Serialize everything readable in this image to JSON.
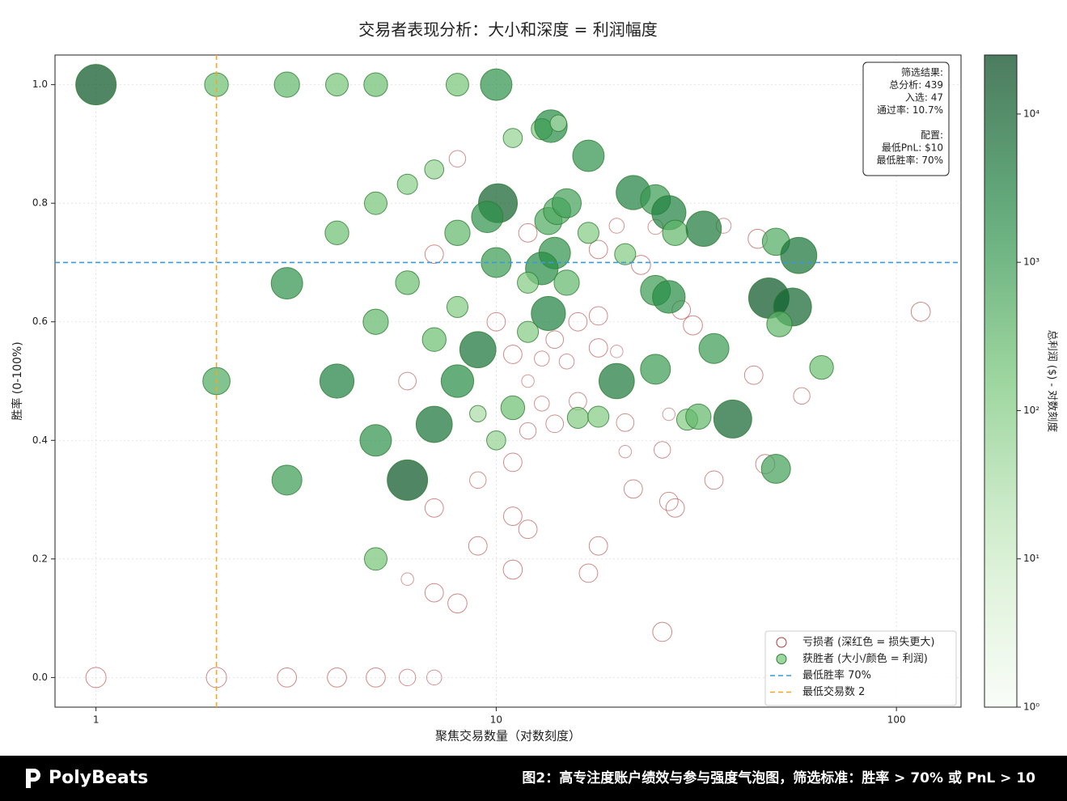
{
  "chart_data": {
    "type": "scatter",
    "title": "交易者表现分析：大小和深度 = 利润幅度",
    "x_label": "聚焦交易数量（对数刻度）",
    "y_label": "胜率 (0-100%)",
    "x_scale": "log",
    "xlim": [
      0.79,
      145
    ],
    "ylim": [
      -0.05,
      1.05
    ],
    "xticks": [
      1,
      10,
      100
    ],
    "yticks": [
      {
        "value": 0,
        "label": "0.0"
      },
      0.2,
      0.4,
      0.6,
      0.8,
      {
        "value": 1,
        "label": "1.0"
      }
    ],
    "grid": true,
    "legend_position": "lower right",
    "colormap": [
      "#f7fcf5",
      "#c7e9c0",
      "#74c476",
      "#238b45",
      "#00441b"
    ],
    "colorbar": {
      "label": "总利润 ($) - 对数刻度",
      "scale": "log",
      "lim": [
        1,
        25000
      ],
      "ticks": [
        {
          "value": 1,
          "label": "10⁰"
        },
        {
          "value": 10,
          "label": "10¹"
        },
        {
          "value": 100,
          "label": "10²"
        },
        {
          "value": 1000,
          "label": "10³"
        },
        {
          "value": 10000,
          "label": "10⁴"
        }
      ]
    },
    "series": [
      {
        "name": "亏损者 (深红色 = 损失更大)",
        "color": "#b03a3a",
        "colored_by_value": false,
        "x": [
          1,
          2,
          3,
          4,
          5,
          6,
          7,
          8,
          12,
          7,
          18,
          20,
          25,
          37,
          45,
          23,
          29,
          115,
          10,
          16,
          18,
          31,
          11,
          14,
          13,
          15,
          18,
          20,
          12,
          6,
          44,
          13,
          16,
          14,
          12,
          21,
          27,
          26,
          21,
          11,
          47,
          35,
          9,
          22,
          27,
          28,
          7,
          11,
          12,
          9,
          18,
          11,
          17,
          6,
          7,
          8,
          26,
          58
        ],
        "values": [
          0,
          0,
          0,
          0,
          0,
          0,
          0,
          0.875,
          0.75,
          0.714,
          0.722,
          0.762,
          0.76,
          0.762,
          0.74,
          0.696,
          0.62,
          0.617,
          0.6,
          0.6,
          0.61,
          0.594,
          0.545,
          0.57,
          0.538,
          0.533,
          0.556,
          0.55,
          0.5,
          0.5,
          0.51,
          0.462,
          0.466,
          0.428,
          0.416,
          0.43,
          0.444,
          0.384,
          0.381,
          0.363,
          0.36,
          0.333,
          0.333,
          0.318,
          0.297,
          0.286,
          0.286,
          0.272,
          0.25,
          0.222,
          0.222,
          0.182,
          0.176,
          0.166,
          0.143,
          0.125,
          0.077,
          0.475
        ],
        "sizes": [
          -80,
          -80,
          -60,
          -60,
          -60,
          -30,
          -20,
          -30,
          -50,
          -50,
          -50,
          -20,
          -20,
          -20,
          -60,
          -60,
          -50,
          -60,
          -50,
          -50,
          -50,
          -60,
          -50,
          -40,
          -20,
          -20,
          -50,
          -10,
          -10,
          -40,
          -50,
          -20,
          -40,
          -40,
          -30,
          -40,
          -10,
          -30,
          -10,
          -50,
          -60,
          -50,
          -30,
          -50,
          -50,
          -50,
          -50,
          -50,
          -50,
          -50,
          -50,
          -60,
          -50,
          -10,
          -50,
          -60,
          -60,
          -30
        ]
      },
      {
        "name": "获胜者 (大小/颜色 = 利润)",
        "color": "#2e7d32",
        "colored_by_value": true,
        "x": [
          1,
          2,
          3,
          4,
          5,
          8,
          10,
          11,
          13,
          13.7,
          14.3,
          17,
          7,
          6,
          5,
          10.1,
          9.5,
          13.5,
          14.2,
          15,
          22,
          25,
          27,
          28,
          33,
          4,
          8,
          17,
          14,
          21,
          10,
          13,
          50,
          57,
          3,
          6,
          12,
          15,
          25,
          27,
          48,
          55,
          13.5,
          8,
          5,
          51,
          12,
          7,
          9,
          35,
          4,
          2,
          8,
          20,
          25,
          65,
          11,
          16,
          18,
          30,
          32,
          39,
          7,
          5,
          10,
          9,
          3,
          6,
          50,
          5
        ],
        "values": [
          1,
          1,
          1,
          1,
          1,
          1,
          1,
          0.91,
          0.925,
          0.93,
          0.935,
          0.88,
          0.857,
          0.832,
          0.8,
          0.8,
          0.777,
          0.77,
          0.787,
          0.8,
          0.818,
          0.806,
          0.784,
          0.75,
          0.757,
          0.75,
          0.75,
          0.75,
          0.716,
          0.714,
          0.7,
          0.69,
          0.735,
          0.712,
          0.665,
          0.666,
          0.666,
          0.666,
          0.653,
          0.642,
          0.64,
          0.625,
          0.614,
          0.625,
          0.6,
          0.596,
          0.583,
          0.57,
          0.553,
          0.555,
          0.5,
          0.5,
          0.5,
          0.5,
          0.52,
          0.523,
          0.455,
          0.438,
          0.44,
          0.435,
          0.44,
          0.436,
          0.427,
          0.4,
          0.4,
          0.445,
          0.333,
          0.333,
          0.352,
          0.2
        ],
        "sizes": [
          15000,
          200,
          300,
          150,
          200,
          150,
          1500,
          60,
          100,
          2000,
          30,
          1500,
          60,
          80,
          150,
          10000,
          1500,
          500,
          500,
          800,
          3000,
          1000,
          3000,
          300,
          4000,
          200,
          300,
          100,
          1500,
          100,
          1000,
          2000,
          500,
          5000,
          1500,
          200,
          100,
          300,
          1000,
          2000,
          15000,
          8000,
          3000,
          100,
          300,
          300,
          100,
          200,
          5000,
          1000,
          3000,
          500,
          2000,
          4000,
          1000,
          200,
          200,
          100,
          100,
          100,
          300,
          8000,
          5000,
          1500,
          60,
          30,
          1000,
          15000,
          800,
          150
        ]
      }
    ],
    "reference_lines": [
      {
        "name": "最低胜率 70%",
        "axis": "y",
        "value": 0.7,
        "color": "#3a9ad9"
      },
      {
        "name": "最低交易数 2",
        "axis": "x",
        "value": 2,
        "color": "#f5a623"
      }
    ],
    "info_box": {
      "sections": [
        [
          "筛选结果:",
          "总分析: 439",
          "入选: 47",
          "通过率: 10.7%"
        ],
        [
          "配置:",
          "最低PnL: $10",
          "最低胜率: 70%"
        ]
      ]
    },
    "footer": {
      "brand": "PolyBeats",
      "caption": "图2：高专注度账户绩效与参与强度气泡图，筛选标准：胜率 > 70% 或 PnL > 10"
    }
  }
}
